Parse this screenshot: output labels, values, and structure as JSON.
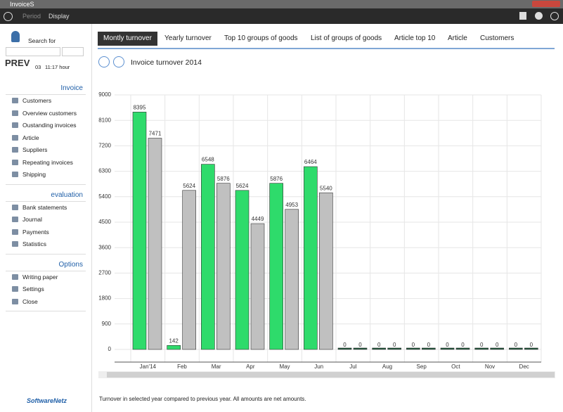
{
  "window": {
    "title": "InvoiceS"
  },
  "toolbar": {
    "items": [
      "Period",
      "Display"
    ]
  },
  "sidebar": {
    "search_label": "Search for",
    "record": "PREV",
    "time_prefix": "03",
    "time": "11:17 hour",
    "sections": [
      {
        "title": "Invoice",
        "items": [
          "Customers",
          "Overview customers",
          "Oustanding invoices",
          "Article",
          "Suppliers",
          "Repeating invoices",
          "Shipping"
        ]
      },
      {
        "title": "evaluation",
        "items": [
          "Bank statements",
          "Journal",
          "Payments",
          "Statistics"
        ]
      },
      {
        "title": "Options",
        "items": [
          "Writing paper",
          "Settings",
          "Close"
        ]
      }
    ],
    "logo": "SoftwareNetz"
  },
  "tabs": {
    "items": [
      "Montly turnover",
      "Yearly turnover",
      "Top 10 groups of goods",
      "List of groups of goods",
      "Article top 10",
      "Article",
      "Customers"
    ],
    "active": 0
  },
  "chart_data": {
    "type": "bar",
    "title": "Invoice turnover 2014",
    "categories": [
      "Jan'14",
      "Feb",
      "Mar",
      "Apr",
      "May",
      "Jun",
      "Jul",
      "Aug",
      "Sep",
      "Oct",
      "Nov",
      "Dec"
    ],
    "category_colors": [
      "#333333",
      "#333333",
      "#c0392b",
      "#333333",
      "#333333",
      "#333333",
      "#333333",
      "#333333",
      "#333333",
      "#333333",
      "#333333",
      "#333333"
    ],
    "series": [
      {
        "color": "#2edb6b",
        "values": [
          8395,
          142,
          6548,
          5624,
          5876,
          6464,
          0,
          0,
          0,
          0,
          0,
          0
        ]
      },
      {
        "color": "#c0c0c0",
        "values": [
          7471,
          5624,
          5876,
          4449,
          4953,
          5540,
          0,
          0,
          0,
          0,
          0,
          0
        ]
      }
    ],
    "ylim": [
      0,
      9000
    ],
    "yticks": [
      0,
      900,
      1800,
      2700,
      3600,
      4500,
      5400,
      6300,
      7200,
      8100,
      9000
    ],
    "grid": true
  },
  "footnote": "Turnover in selected year compared to previous year. All amounts are net amounts."
}
